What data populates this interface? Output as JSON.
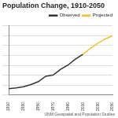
{
  "chart_data": {
    "type": "line",
    "title": "Population Change, 1910-2050",
    "annotations": [
      "UNM Geospatial and Population Studies"
    ],
    "categories": [
      "1910",
      null,
      "1930",
      null,
      "1950",
      null,
      "1970",
      null,
      "1990",
      null,
      "2010",
      null,
      "2030",
      null,
      "2050"
    ],
    "series": [
      {
        "name": "Observed",
        "color": "#333333",
        "values": [
          327301,
          360350,
          423317,
          531818,
          681187,
          951023,
          1016000,
          1303303,
          1515069,
          1819046,
          2059179,
          null,
          null,
          null,
          null
        ]
      },
      {
        "name": "Projected",
        "color": "#f2c12e",
        "values": [
          null,
          null,
          null,
          null,
          null,
          null,
          null,
          null,
          null,
          null,
          2059179,
          2351724,
          2613332,
          2827692,
          3006000
        ]
      }
    ],
    "ylim": [
      0,
      3500000
    ],
    "yticks": [
      0,
      500000,
      1000000,
      1500000,
      2000000,
      2500000,
      3000000,
      3500000
    ],
    "grid": true,
    "legend": "top",
    "tick_labels": "x"
  }
}
